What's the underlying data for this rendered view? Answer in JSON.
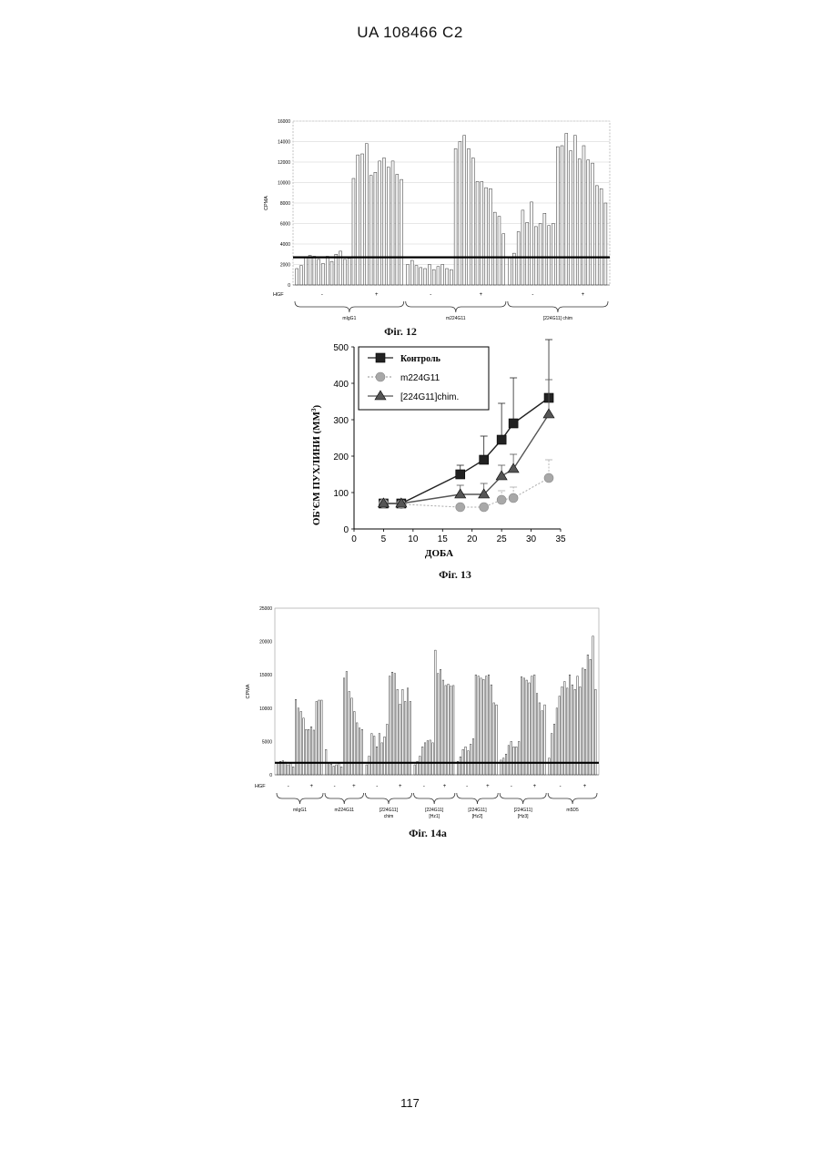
{
  "header": {
    "text": "UA   108466   C2"
  },
  "footer": {
    "page_number": "117"
  },
  "chart_data": [
    {
      "type": "bar",
      "caption": "Фіг. 12",
      "ylabel": "CPMA",
      "ylim": [
        0,
        16000
      ],
      "yticks": [
        "0",
        "2000",
        "4000",
        "6000",
        "8000",
        "10000",
        "12000",
        "14000",
        "16000"
      ],
      "baseline": 2700,
      "hgf_label": "HGF",
      "groups": [
        {
          "name": "mIgG1",
          "minus": "-",
          "plus": "+",
          "values": [
            1600,
            1900,
            2700,
            2900,
            2800,
            2500,
            2100,
            2800,
            2300,
            3000,
            3300,
            2500,
            2600,
            10400,
            12700,
            12800,
            13800,
            10700,
            11000,
            12100,
            12400,
            11500,
            12100,
            10800,
            10300
          ]
        },
        {
          "name": "m224G11",
          "minus": "-",
          "plus": "+",
          "values": [
            2000,
            2400,
            1900,
            1700,
            1600,
            2000,
            1500,
            1800,
            2000,
            1600,
            1500,
            13300,
            14000,
            14600,
            13300,
            12400,
            10100,
            10100,
            9500,
            9400,
            7100,
            6700,
            5000
          ]
        },
        {
          "name": "[224G11] chim",
          "minus": "-",
          "plus": "+",
          "values": [
            2700,
            3100,
            5200,
            7300,
            6100,
            8100,
            5700,
            6000,
            7000,
            5800,
            6000,
            13500,
            13600,
            14800,
            13100,
            14600,
            12300,
            13600,
            12200,
            11900,
            9700,
            9400,
            8000
          ]
        }
      ]
    },
    {
      "type": "line",
      "caption": "Фіг. 13",
      "xlabel": "ДОБА",
      "ylabel": "ОБ'ЄМ ПУХЛИНИ (ММ",
      "ylabel_sup": "3",
      "ylabel_end": ")",
      "xlim": [
        0,
        35
      ],
      "ylim": [
        0,
        500
      ],
      "xticks": [
        "0",
        "5",
        "10",
        "15",
        "20",
        "25",
        "30",
        "35"
      ],
      "yticks": [
        "0",
        "100",
        "200",
        "300",
        "400",
        "500"
      ],
      "series": [
        {
          "name": "Контроль",
          "color": "#222222",
          "x": [
            5,
            8,
            18,
            22,
            25,
            27,
            33
          ],
          "y": [
            70,
            70,
            150,
            190,
            245,
            290,
            360
          ],
          "err": [
            0,
            0,
            25,
            65,
            100,
            125,
            160
          ]
        },
        {
          "name": "m224G11",
          "color": "#a8a8a8",
          "x": [
            5,
            8,
            18,
            22,
            25,
            27,
            33
          ],
          "y": [
            70,
            68,
            60,
            60,
            80,
            85,
            140
          ],
          "err": [
            0,
            0,
            5,
            5,
            25,
            30,
            50
          ]
        },
        {
          "name": "[224G11]chim.",
          "color": "#555555",
          "x": [
            5,
            8,
            18,
            22,
            25,
            27,
            33
          ],
          "y": [
            70,
            70,
            95,
            95,
            145,
            165,
            315
          ],
          "err": [
            0,
            0,
            25,
            30,
            30,
            40,
            95
          ]
        }
      ]
    },
    {
      "type": "bar",
      "caption": "Фіг. 14a",
      "ylabel": "CPMA",
      "ylim": [
        0,
        25000
      ],
      "yticks": [
        "0",
        "5000",
        "10000",
        "15000",
        "20000",
        "25000"
      ],
      "baseline": 1800,
      "hgf_label": "HGF",
      "groups": [
        {
          "name": "mIgG1",
          "name2": "",
          "minus": "-",
          "plus": "+",
          "values": [
            1800,
            2000,
            2100,
            1900,
            1500,
            1700,
            1200,
            11300,
            10000,
            9500,
            8500,
            6800,
            6800,
            7200,
            6700,
            11000,
            11200,
            11200
          ]
        },
        {
          "name": "m224G11",
          "name2": "",
          "minus": "-",
          "plus": "+",
          "values": [
            3800,
            1800,
            1600,
            1300,
            1500,
            1700,
            1200,
            14500,
            15500,
            12500,
            11500,
            9500,
            7800,
            7000,
            6800
          ]
        },
        {
          "name": "[224G11]",
          "name2": "chim",
          "minus": "-",
          "plus": "+",
          "values": [
            1500,
            2800,
            6200,
            5800,
            4200,
            6200,
            4800,
            5700,
            7600,
            14800,
            15400,
            15200,
            12800,
            10600,
            12800,
            11000,
            13000,
            11000
          ]
        },
        {
          "name": "[224G11]",
          "name2": "[Hz1]",
          "minus": "-",
          "plus": "+",
          "values": [
            1500,
            2000,
            2800,
            4200,
            4800,
            5100,
            5200,
            4800,
            18700,
            15200,
            15800,
            14200,
            13400,
            13600,
            13300,
            13400
          ]
        },
        {
          "name": "[224G11]",
          "name2": "[Hz2]",
          "minus": "-",
          "plus": "+",
          "values": [
            2000,
            2700,
            3800,
            4200,
            3600,
            4600,
            5400,
            15000,
            14800,
            14500,
            14300,
            14800,
            15000,
            13500,
            10800,
            10500
          ]
        },
        {
          "name": "[224G11]",
          "name2": "[Hz3]",
          "minus": "-",
          "plus": "+",
          "values": [
            2200,
            2500,
            3100,
            4400,
            5000,
            4200,
            4200,
            5000,
            14700,
            14500,
            14200,
            13800,
            14800,
            15000,
            12200,
            10800,
            9600,
            10500
          ]
        },
        {
          "name": "m5D5",
          "name2": "",
          "minus": "-",
          "plus": "+",
          "values": [
            2500,
            6200,
            7600,
            10000,
            11800,
            13200,
            14000,
            13000,
            15000,
            13500,
            12800,
            14800,
            13200,
            16000,
            15800,
            18000,
            17300,
            20800,
            12800
          ]
        }
      ]
    }
  ]
}
